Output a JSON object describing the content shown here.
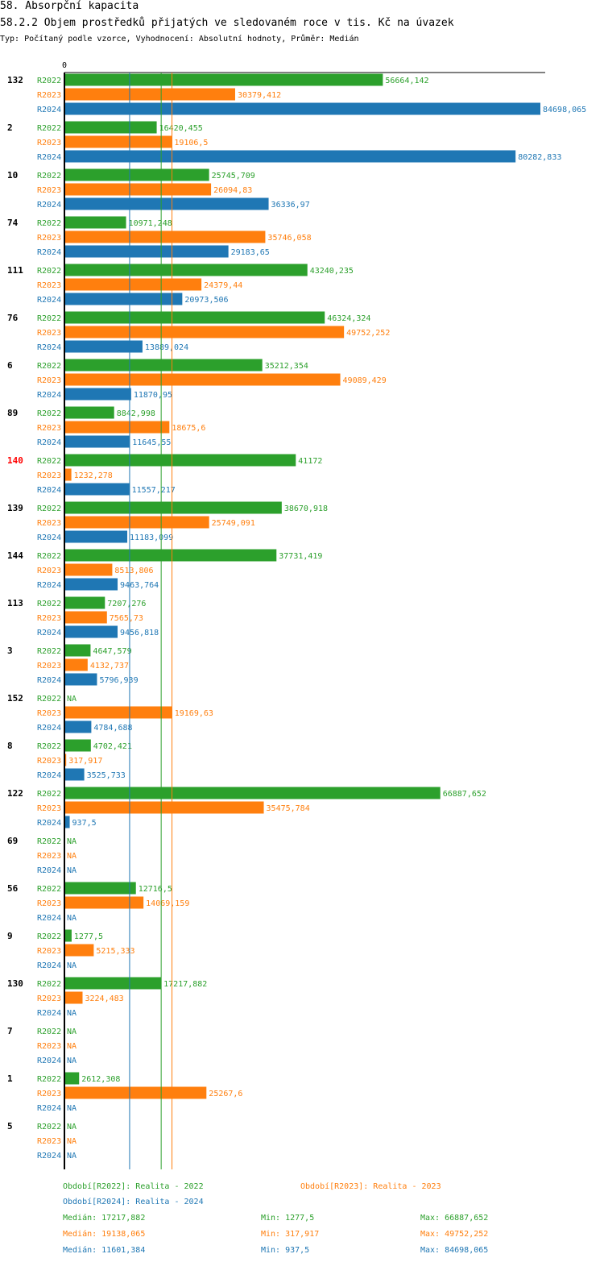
{
  "header": {
    "title": "58. Absorpční kapacita",
    "subtitle": "58.2.2 Objem prostředků přijatých ve sledovaném roce v tis. Kč na úvazek",
    "description": "Typ: Počítaný podle vzorce, Vyhodnocení: Absolutní hodnoty, Průměr: Medián"
  },
  "chart_data": {
    "type": "bar",
    "orientation": "horizontal",
    "axis_zero_label": "0",
    "xlim": [
      0,
      84698.065
    ],
    "highlight_category": "140",
    "categories": [
      "132",
      "2",
      "10",
      "74",
      "111",
      "76",
      "6",
      "89",
      "140",
      "139",
      "144",
      "113",
      "3",
      "152",
      "8",
      "122",
      "69",
      "56",
      "9",
      "130",
      "7",
      "1",
      "5"
    ],
    "series": [
      {
        "key": "R2022",
        "name": "R2022",
        "color": "#2ca02c",
        "values": [
          56664.142,
          16420.455,
          25745.709,
          10971.248,
          43240.235,
          46324.324,
          35212.354,
          8842.998,
          41172,
          38670.918,
          37731.419,
          7207.276,
          4647.579,
          null,
          4702.421,
          66887.652,
          null,
          12716.5,
          1277.5,
          17217.882,
          null,
          2612.308,
          null
        ],
        "labels": [
          "56664,142",
          "16420,455",
          "25745,709",
          "10971,248",
          "43240,235",
          "46324,324",
          "35212,354",
          "8842,998",
          "41172",
          "38670,918",
          "37731,419",
          "7207,276",
          "4647,579",
          "NA",
          "4702,421",
          "66887,652",
          "NA",
          "12716,5",
          "1277,5",
          "17217,882",
          "NA",
          "2612,308",
          "NA"
        ]
      },
      {
        "key": "R2023",
        "name": "R2023",
        "color": "#ff7f0e",
        "values": [
          30379.412,
          19106.5,
          26094.83,
          35746.058,
          24379.44,
          49752.252,
          49089.429,
          18675.6,
          1232.278,
          25749.091,
          8513.806,
          7565.73,
          4132.737,
          19169.63,
          317.917,
          35475.784,
          null,
          14069.159,
          5215.333,
          3224.483,
          null,
          25267.6,
          null
        ],
        "labels": [
          "30379,412",
          "19106,5",
          "26094,83",
          "35746,058",
          "24379,44",
          "49752,252",
          "49089,429",
          "18675,6",
          "1232,278",
          "25749,091",
          "8513,806",
          "7565,73",
          "4132,737",
          "19169,63",
          "317,917",
          "35475,784",
          "NA",
          "14069,159",
          "5215,333",
          "3224,483",
          "NA",
          "25267,6",
          "NA"
        ]
      },
      {
        "key": "R2024",
        "name": "R2024",
        "color": "#1f77b4",
        "values": [
          84698.065,
          80282.833,
          36336.97,
          29183.65,
          20973.506,
          13889.024,
          11870.95,
          11645.55,
          11557.217,
          11183.099,
          9463.764,
          9456.818,
          5796.939,
          4784.688,
          3525.733,
          937.5,
          null,
          null,
          null,
          null,
          null,
          null,
          null
        ],
        "labels": [
          "84698,065",
          "80282,833",
          "36336,97",
          "29183,65",
          "20973,506",
          "13889,024",
          "11870,95",
          "11645,55",
          "11557,217",
          "11183,099",
          "9463,764",
          "9456,818",
          "5796,939",
          "4784,688",
          "3525,733",
          "937,5",
          "NA",
          "NA",
          "NA",
          "NA",
          "NA",
          "NA",
          "NA"
        ]
      }
    ],
    "median_lines": [
      {
        "series": "R2022",
        "value": 17217.882
      },
      {
        "series": "R2023",
        "value": 19138.065
      },
      {
        "series": "R2024",
        "value": 11601.384
      }
    ]
  },
  "legend": {
    "periods": [
      {
        "series": "R2022",
        "text": "Období[R2022]: Realita - 2022"
      },
      {
        "series": "R2023",
        "text": "Období[R2023]: Realita - 2023"
      },
      {
        "series": "R2024",
        "text": "Období[R2024]: Realita - 2024"
      }
    ],
    "stats": [
      {
        "series": "R2022",
        "median": "Medián: 17217,882",
        "min": "Min: 1277,5",
        "max": "Max: 66887,652"
      },
      {
        "series": "R2023",
        "median": "Medián: 19138,065",
        "min": "Min: 317,917",
        "max": "Max: 49752,252"
      },
      {
        "series": "R2024",
        "median": "Medián: 11601,384",
        "min": "Min: 937,5",
        "max": "Max: 84698,065"
      }
    ]
  }
}
